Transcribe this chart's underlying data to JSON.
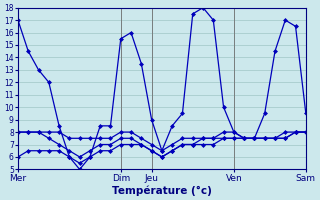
{
  "xlabel": "Température (°c)",
  "background_color": "#cce8ec",
  "grid_color": "#a8cccc",
  "line_color": "#0000bb",
  "ylim": [
    5,
    18
  ],
  "yticks": [
    5,
    6,
    7,
    8,
    9,
    10,
    11,
    12,
    13,
    14,
    15,
    16,
    17,
    18
  ],
  "day_labels": [
    "Mer",
    "Dim",
    "Jeu",
    "Ven",
    "Sam"
  ],
  "day_positions": [
    0,
    10,
    13,
    21,
    28
  ],
  "xlim": [
    0,
    28
  ],
  "lines": [
    {
      "y": [
        17,
        14.5,
        13.0,
        12.0,
        8.5,
        6.0,
        5.0,
        6.0,
        8.5,
        8.5,
        15.5,
        16.0,
        13.5,
        9.0,
        6.5,
        8.5,
        9.5,
        17.5,
        18.0,
        17.0,
        10.0,
        8.0,
        7.5,
        7.5,
        9.5,
        14.5,
        17.0,
        16.5,
        9.5
      ],
      "x": [
        0,
        1,
        2,
        3,
        4,
        5,
        6,
        7,
        8,
        9,
        10,
        11,
        12,
        13,
        14,
        15,
        16,
        17,
        18,
        19,
        20,
        21,
        22,
        23,
        24,
        25,
        26,
        27,
        28
      ]
    },
    {
      "y": [
        8.0,
        8.0,
        8.0,
        8.0,
        8.0,
        7.5,
        7.5,
        7.5,
        7.5,
        7.5,
        8.0,
        8.0,
        7.5,
        7.0,
        6.5,
        7.0,
        7.5,
        7.5,
        7.5,
        7.5,
        8.0,
        8.0,
        7.5,
        7.5,
        7.5,
        7.5,
        8.0,
        8.0,
        8.0
      ],
      "x": [
        0,
        1,
        2,
        3,
        4,
        5,
        6,
        7,
        8,
        9,
        10,
        11,
        12,
        13,
        14,
        15,
        16,
        17,
        18,
        19,
        20,
        21,
        22,
        23,
        24,
        25,
        26,
        27,
        28
      ]
    },
    {
      "y": [
        8.0,
        8.0,
        8.0,
        7.5,
        7.0,
        6.5,
        6.0,
        6.5,
        7.0,
        7.0,
        7.5,
        7.5,
        7.0,
        6.5,
        6.0,
        6.5,
        7.0,
        7.0,
        7.5,
        7.5,
        7.5,
        7.5,
        7.5,
        7.5,
        7.5,
        7.5,
        7.5,
        8.0,
        8.0
      ],
      "x": [
        0,
        1,
        2,
        3,
        4,
        5,
        6,
        7,
        8,
        9,
        10,
        11,
        12,
        13,
        14,
        15,
        16,
        17,
        18,
        19,
        20,
        21,
        22,
        23,
        24,
        25,
        26,
        27,
        28
      ]
    },
    {
      "y": [
        6.0,
        6.5,
        6.5,
        6.5,
        6.5,
        6.0,
        5.5,
        6.0,
        6.5,
        6.5,
        7.0,
        7.0,
        7.0,
        6.5,
        6.0,
        6.5,
        7.0,
        7.0,
        7.0,
        7.0,
        7.5,
        7.5,
        7.5,
        7.5,
        7.5,
        7.5,
        7.5,
        8.0,
        8.0
      ],
      "x": [
        0,
        1,
        2,
        3,
        4,
        5,
        6,
        7,
        8,
        9,
        10,
        11,
        12,
        13,
        14,
        15,
        16,
        17,
        18,
        19,
        20,
        21,
        22,
        23,
        24,
        25,
        26,
        27,
        28
      ]
    }
  ],
  "vline_positions": [
    0,
    10,
    13,
    21,
    28
  ],
  "vline_color": "#707070"
}
